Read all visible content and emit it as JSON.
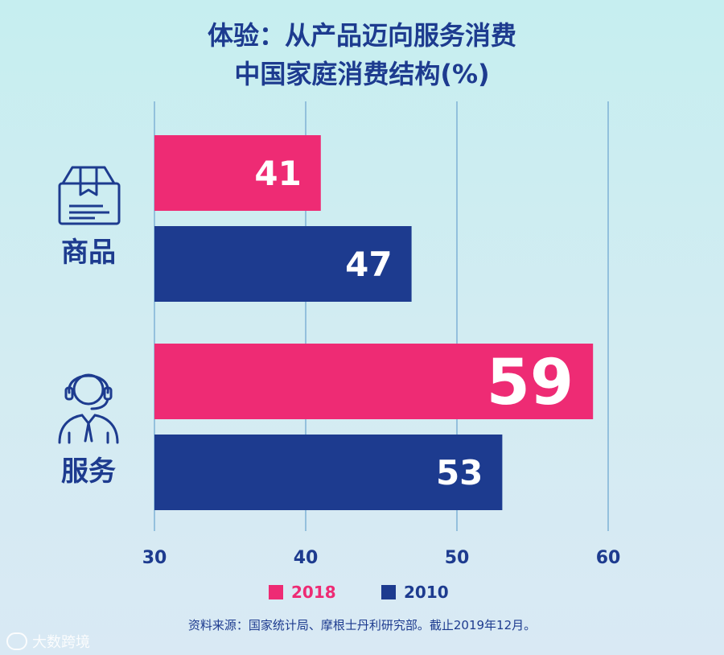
{
  "title_line1": "体验：从产品迈向服务消费",
  "title_line2": "中国家庭消费结构(%)",
  "categories": [
    "商品",
    "服务"
  ],
  "icons": [
    "package-box-icon",
    "customer-service-headset-icon"
  ],
  "legend": [
    {
      "label": "2018",
      "color": "#ee2b74"
    },
    {
      "label": "2010",
      "color": "#1d3b8f"
    }
  ],
  "source": "资料来源：国家统计局、摩根士丹利研究部。截止2019年12月。",
  "watermark": "大数跨境",
  "chart_data": {
    "type": "bar",
    "orientation": "horizontal",
    "categories": [
      "商品",
      "服务"
    ],
    "series": [
      {
        "name": "2018",
        "values": [
          41,
          59
        ],
        "color": "#ee2b74"
      },
      {
        "name": "2010",
        "values": [
          47,
          53
        ],
        "color": "#1d3b8f"
      }
    ],
    "xlim": [
      30,
      60
    ],
    "xticks": [
      30,
      40,
      50,
      60
    ],
    "grid": true,
    "legend_position": "bottom-center"
  }
}
